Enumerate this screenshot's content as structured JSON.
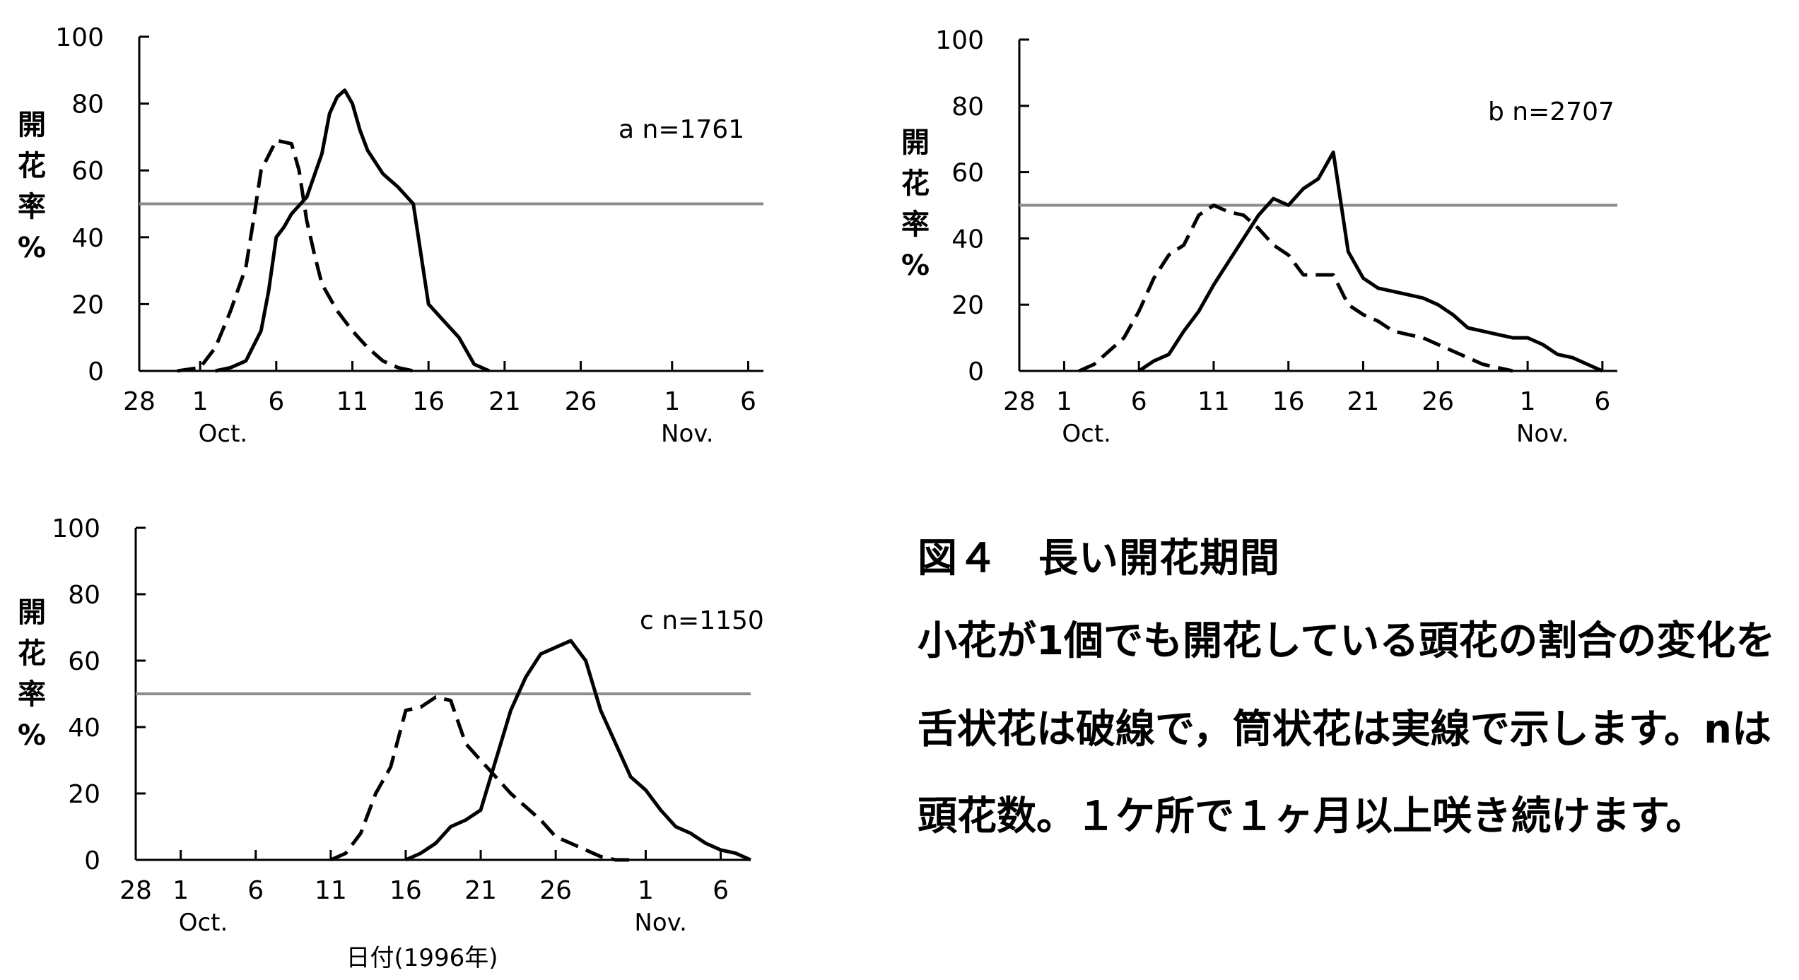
{
  "figure_caption": {
    "title": "図４　長い開花期間",
    "lines": [
      "小花が1個でも開花している頭花の割合の変化を",
      "舌状花は破線で，筒状花は実線で示します。nは",
      "頭花数。１ケ所で１ヶ月以上咲き続けます。"
    ]
  },
  "colors": {
    "axis": "#000000",
    "solid": "#000000",
    "dashed": "#000000",
    "reference": "#8c8c8c"
  },
  "chart_data": [
    {
      "type": "line",
      "panel_label": "a  n=1761",
      "ylabel_chars": [
        "開",
        "花",
        "率",
        "%"
      ],
      "xlabel": "",
      "ylim": [
        0,
        100
      ],
      "xlim": [
        28,
        69
      ],
      "y_ticks": [
        0,
        20,
        40,
        60,
        80,
        100
      ],
      "x_ticks": [
        {
          "x": 28,
          "label": "28"
        },
        {
          "x": 32,
          "label": "1"
        },
        {
          "x": 37,
          "label": "6"
        },
        {
          "x": 42,
          "label": "11"
        },
        {
          "x": 47,
          "label": "16"
        },
        {
          "x": 52,
          "label": "21"
        },
        {
          "x": 57,
          "label": "26"
        },
        {
          "x": 63,
          "label": "1"
        },
        {
          "x": 68,
          "label": "6"
        }
      ],
      "month_labels": [
        {
          "x": 33.5,
          "label": "Oct."
        },
        {
          "x": 64,
          "label": "Nov."
        }
      ],
      "reference_line": 50,
      "series": [
        {
          "style": "dashed",
          "x": [
            30.5,
            32,
            33,
            34,
            35,
            35.5,
            36,
            37,
            38,
            38.5,
            39,
            39.5,
            40,
            41,
            42,
            43,
            44,
            45,
            46
          ],
          "y": [
            0,
            1,
            7,
            18,
            31,
            45,
            60,
            69,
            68,
            60,
            45,
            35,
            26,
            18,
            12,
            7,
            3,
            1,
            0
          ]
        },
        {
          "style": "solid",
          "x": [
            33,
            34,
            35,
            36,
            36.5,
            37,
            37.5,
            38,
            39,
            40,
            40.5,
            41,
            41.5,
            42,
            42.5,
            43,
            44,
            45,
            46,
            47,
            48,
            49,
            50,
            51
          ],
          "y": [
            0,
            1,
            3,
            12,
            24,
            40,
            43,
            47,
            52,
            65,
            77,
            82,
            84,
            80,
            72,
            66,
            59,
            55,
            50,
            20,
            15,
            10,
            2,
            0
          ]
        }
      ]
    },
    {
      "type": "line",
      "panel_label": "b  n=2707",
      "ylabel_chars": [
        "開",
        "花",
        "率",
        "%"
      ],
      "xlabel": "",
      "ylim": [
        0,
        100
      ],
      "xlim": [
        28,
        68
      ],
      "y_ticks": [
        0,
        20,
        40,
        60,
        80,
        100
      ],
      "x_ticks": [
        {
          "x": 28,
          "label": "28"
        },
        {
          "x": 31,
          "label": "1"
        },
        {
          "x": 36,
          "label": "6"
        },
        {
          "x": 41,
          "label": "11"
        },
        {
          "x": 46,
          "label": "16"
        },
        {
          "x": 51,
          "label": "21"
        },
        {
          "x": 56,
          "label": "26"
        },
        {
          "x": 62,
          "label": "1"
        },
        {
          "x": 67,
          "label": "6"
        }
      ],
      "month_labels": [
        {
          "x": 32.5,
          "label": "Oct."
        },
        {
          "x": 63,
          "label": "Nov."
        }
      ],
      "reference_line": 50,
      "series": [
        {
          "style": "dashed",
          "x": [
            32,
            33,
            34,
            35,
            36,
            37,
            38,
            39,
            40,
            41,
            42,
            43,
            44,
            45,
            46,
            47,
            48,
            49,
            50,
            51,
            52,
            53,
            54,
            55,
            56,
            57,
            58,
            59,
            60,
            61
          ],
          "y": [
            0,
            2,
            6,
            10,
            18,
            28,
            35,
            38,
            47,
            50,
            48,
            47,
            43,
            38,
            35,
            29,
            29,
            29,
            20,
            17,
            15,
            12,
            11,
            10,
            8,
            6,
            4,
            2,
            1,
            0
          ]
        },
        {
          "style": "solid",
          "x": [
            36,
            37,
            38,
            39,
            40,
            41,
            42,
            43,
            44,
            45,
            46,
            47,
            48,
            49,
            50,
            51,
            52,
            53,
            54,
            55,
            56,
            57,
            58,
            59,
            60,
            61,
            62,
            63,
            64,
            65,
            66,
            67
          ],
          "y": [
            0,
            3,
            5,
            12,
            18,
            26,
            33,
            40,
            47,
            52,
            50,
            55,
            58,
            66,
            36,
            28,
            25,
            24,
            23,
            22,
            20,
            17,
            13,
            12,
            11,
            10,
            10,
            8,
            5,
            4,
            2,
            0
          ]
        }
      ]
    },
    {
      "type": "line",
      "panel_label": "c  n=1150",
      "ylabel_chars": [
        "開",
        "花",
        "率",
        "%"
      ],
      "xlabel": "日付(1996年)",
      "ylim": [
        0,
        100
      ],
      "xlim": [
        28,
        69
      ],
      "y_ticks": [
        0,
        20,
        40,
        60,
        80,
        100
      ],
      "x_ticks": [
        {
          "x": 28,
          "label": "28"
        },
        {
          "x": 31,
          "label": "1"
        },
        {
          "x": 36,
          "label": "6"
        },
        {
          "x": 41,
          "label": "11"
        },
        {
          "x": 46,
          "label": "16"
        },
        {
          "x": 51,
          "label": "21"
        },
        {
          "x": 56,
          "label": "26"
        },
        {
          "x": 62,
          "label": "1"
        },
        {
          "x": 67,
          "label": "6"
        }
      ],
      "month_labels": [
        {
          "x": 32.5,
          "label": "Oct."
        },
        {
          "x": 63,
          "label": "Nov."
        }
      ],
      "reference_line": 50,
      "series": [
        {
          "style": "dashed",
          "x": [
            41,
            42,
            43,
            44,
            45,
            46,
            47,
            48,
            49,
            50,
            51,
            52,
            53,
            54,
            55,
            56,
            57,
            58,
            59,
            60,
            61
          ],
          "y": [
            0,
            2,
            8,
            20,
            28,
            45,
            46,
            49,
            48,
            35,
            30,
            25,
            20,
            16,
            12,
            7,
            5,
            3,
            1,
            0,
            0
          ]
        },
        {
          "style": "solid",
          "x": [
            46,
            47,
            48,
            49,
            50,
            51,
            52,
            53,
            54,
            55,
            56,
            57,
            58,
            59,
            60,
            61,
            62,
            63,
            64,
            65,
            66,
            67,
            68,
            69
          ],
          "y": [
            0,
            2,
            5,
            10,
            12,
            15,
            30,
            45,
            55,
            62,
            64,
            66,
            60,
            45,
            35,
            25,
            21,
            15,
            10,
            8,
            5,
            3,
            2,
            0
          ]
        }
      ]
    }
  ]
}
